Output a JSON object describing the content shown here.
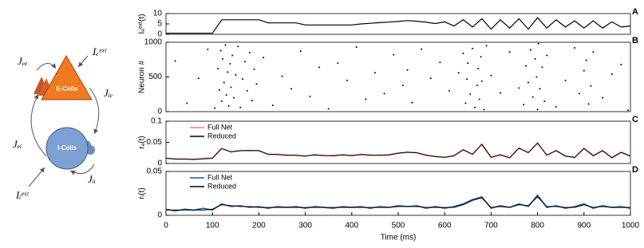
{
  "diagram": {
    "e_cells": "E-Cells",
    "i_cells": "I-Cells",
    "j_ee": "Jₑₑ",
    "j_e_ext": "Iₑᵉˣᵗ",
    "j_ie": "Jᵢₑ",
    "j_ei": "Jₑᵢ",
    "j_ii": "Jᵢᵢ",
    "j_i_ext": "Iᵢᵉˣᵗ"
  },
  "chart_data": [
    {
      "type": "line",
      "panel_label": "A",
      "y_label": "Iₑᵉˣᵗ(t)",
      "x": [
        0,
        20,
        40,
        60,
        80,
        100,
        120,
        140,
        160,
        180,
        200,
        220,
        240,
        260,
        280,
        300,
        320,
        340,
        360,
        380,
        400,
        420,
        440,
        460,
        480,
        500,
        520,
        540,
        560,
        580,
        600,
        620,
        640,
        660,
        680,
        700,
        720,
        740,
        760,
        780,
        800,
        820,
        840,
        860,
        880,
        900,
        920,
        940,
        960,
        980,
        1000
      ],
      "series": [
        {
          "name": null,
          "color": "#000000",
          "values": [
            0.5,
            0.5,
            0.5,
            0.5,
            0.5,
            0.5,
            7,
            7,
            7,
            7,
            7,
            5.5,
            5.5,
            5.5,
            5.5,
            4.5,
            4.5,
            4.5,
            4.5,
            4.5,
            4.5,
            5,
            5.3,
            5.6,
            5.9,
            6.2,
            6.6,
            6.3,
            5.8,
            5.2,
            6,
            4,
            7,
            3.5,
            7.5,
            2.5,
            7,
            3,
            7.5,
            2.5,
            8,
            3,
            7,
            3.5,
            6.5,
            3,
            6.5,
            3,
            6,
            3.5,
            4
          ]
        }
      ],
      "xlim": [
        0,
        1000
      ],
      "ylim": [
        0,
        10
      ],
      "yticks": [
        0,
        5,
        10
      ]
    },
    {
      "type": "scatter",
      "panel_label": "B",
      "y_label": "Neuron #",
      "color": "#000000",
      "x": [
        20,
        45,
        70,
        90,
        105,
        112,
        115,
        118,
        120,
        122,
        125,
        128,
        130,
        133,
        135,
        138,
        140,
        143,
        146,
        150,
        155,
        160,
        165,
        170,
        175,
        180,
        185,
        190,
        195,
        210,
        230,
        250,
        270,
        290,
        310,
        330,
        350,
        370,
        390,
        410,
        430,
        450,
        470,
        490,
        510,
        520,
        530,
        550,
        570,
        590,
        610,
        630,
        640,
        645,
        648,
        650,
        655,
        660,
        665,
        670,
        672,
        675,
        678,
        680,
        685,
        690,
        700,
        720,
        740,
        760,
        770,
        775,
        780,
        785,
        790,
        795,
        798,
        800,
        802,
        805,
        810,
        815,
        820,
        840,
        860,
        880,
        890,
        900,
        905,
        910,
        915,
        920,
        940,
        960,
        980,
        995
      ],
      "values": [
        730,
        120,
        480,
        900,
        50,
        620,
        310,
        880,
        150,
        760,
        420,
        960,
        240,
        570,
        80,
        690,
        350,
        810,
        200,
        530,
        940,
        60,
        470,
        720,
        300,
        850,
        160,
        610,
        400,
        780,
        90,
        510,
        330,
        870,
        220,
        640,
        40,
        700,
        450,
        930,
        180,
        560,
        260,
        820,
        380,
        600,
        130,
        900,
        480,
        710,
        300,
        560,
        840,
        120,
        470,
        700,
        250,
        910,
        60,
        380,
        620,
        180,
        790,
        440,
        30,
        950,
        520,
        270,
        860,
        340,
        100,
        660,
        420,
        890,
        210,
        760,
        500,
        30,
        980,
        330,
        640,
        150,
        810,
        70,
        450,
        920,
        260,
        590,
        740,
        110,
        370,
        860,
        200,
        540,
        680,
        20
      ],
      "xlim": [
        0,
        1000
      ],
      "ylim": [
        0,
        1000
      ],
      "yticks": [
        0,
        500,
        1000
      ]
    },
    {
      "type": "line",
      "panel_label": "C",
      "y_label": "rₑ(t)",
      "legend": "upper left",
      "x": [
        0,
        20,
        40,
        60,
        80,
        100,
        120,
        140,
        160,
        180,
        200,
        220,
        240,
        260,
        280,
        300,
        320,
        340,
        360,
        380,
        400,
        420,
        440,
        460,
        480,
        500,
        520,
        540,
        560,
        580,
        600,
        620,
        640,
        660,
        680,
        700,
        720,
        740,
        760,
        780,
        800,
        820,
        840,
        860,
        880,
        900,
        920,
        940,
        960,
        980,
        1000
      ],
      "series": [
        {
          "name": "Full Net",
          "color": "#f07f6a",
          "values": [
            0.013,
            0.01,
            0.011,
            0.009,
            0.012,
            0.013,
            0.036,
            0.027,
            0.031,
            0.03,
            0.031,
            0.021,
            0.022,
            0.019,
            0.02,
            0.017,
            0.021,
            0.018,
            0.019,
            0.021,
            0.018,
            0.022,
            0.019,
            0.02,
            0.021,
            0.025,
            0.026,
            0.026,
            0.019,
            0.017,
            0.014,
            0.019,
            0.033,
            0.021,
            0.046,
            0.014,
            0.021,
            0.013,
            0.037,
            0.025,
            0.049,
            0.019,
            0.031,
            0.017,
            0.015,
            0.035,
            0.019,
            0.031,
            0.013,
            0.027,
            0.017
          ]
        },
        {
          "name": "Reduced",
          "color": "#000000",
          "values": [
            0.012,
            0.011,
            0.01,
            0.01,
            0.011,
            0.012,
            0.035,
            0.028,
            0.03,
            0.031,
            0.03,
            0.022,
            0.021,
            0.02,
            0.019,
            0.018,
            0.02,
            0.019,
            0.018,
            0.02,
            0.019,
            0.021,
            0.02,
            0.019,
            0.02,
            0.024,
            0.027,
            0.025,
            0.02,
            0.016,
            0.015,
            0.018,
            0.032,
            0.022,
            0.045,
            0.015,
            0.02,
            0.014,
            0.036,
            0.026,
            0.048,
            0.02,
            0.03,
            0.018,
            0.014,
            0.036,
            0.018,
            0.03,
            0.014,
            0.026,
            0.018
          ]
        }
      ],
      "xlim": [
        0,
        1000
      ],
      "ylim": [
        0,
        0.1
      ],
      "yticks": [
        0,
        0.05,
        0.1
      ]
    },
    {
      "type": "line",
      "panel_label": "D",
      "y_label": "rᵢ(t)",
      "legend": "upper left",
      "x_label": "Time (ms)",
      "x": [
        0,
        20,
        40,
        60,
        80,
        100,
        120,
        140,
        160,
        180,
        200,
        220,
        240,
        260,
        280,
        300,
        320,
        340,
        360,
        380,
        400,
        420,
        440,
        460,
        480,
        500,
        520,
        540,
        560,
        580,
        600,
        620,
        640,
        660,
        680,
        700,
        720,
        740,
        760,
        780,
        800,
        820,
        840,
        860,
        880,
        900,
        920,
        940,
        960,
        980,
        1000
      ],
      "series": [
        {
          "name": "Full Net",
          "color": "#1f5b9b",
          "values": [
            0.007,
            0.005,
            0.007,
            0.006,
            0.008,
            0.006,
            0.013,
            0.01,
            0.011,
            0.009,
            0.01,
            0.008,
            0.01,
            0.009,
            0.01,
            0.008,
            0.01,
            0.009,
            0.008,
            0.01,
            0.009,
            0.01,
            0.008,
            0.01,
            0.009,
            0.011,
            0.01,
            0.011,
            0.008,
            0.01,
            0.008,
            0.01,
            0.013,
            0.018,
            0.021,
            0.008,
            0.011,
            0.009,
            0.013,
            0.01,
            0.023,
            0.009,
            0.011,
            0.008,
            0.01,
            0.013,
            0.008,
            0.011,
            0.009,
            0.01,
            0.008
          ]
        },
        {
          "name": "Reduced",
          "color": "#000000",
          "values": [
            0.006,
            0.006,
            0.006,
            0.006,
            0.006,
            0.007,
            0.012,
            0.011,
            0.01,
            0.01,
            0.009,
            0.009,
            0.009,
            0.009,
            0.009,
            0.009,
            0.009,
            0.009,
            0.009,
            0.009,
            0.009,
            0.009,
            0.009,
            0.009,
            0.009,
            0.01,
            0.01,
            0.01,
            0.009,
            0.009,
            0.009,
            0.009,
            0.012,
            0.017,
            0.02,
            0.009,
            0.01,
            0.009,
            0.012,
            0.011,
            0.021,
            0.01,
            0.01,
            0.009,
            0.009,
            0.012,
            0.009,
            0.01,
            0.009,
            0.009,
            0.009
          ]
        }
      ],
      "xlim": [
        0,
        1000
      ],
      "ylim": [
        0,
        0.05
      ],
      "yticks": [
        0,
        0.05
      ],
      "xticks": [
        0,
        100,
        200,
        300,
        400,
        500,
        600,
        700,
        800,
        900,
        1000
      ]
    }
  ]
}
